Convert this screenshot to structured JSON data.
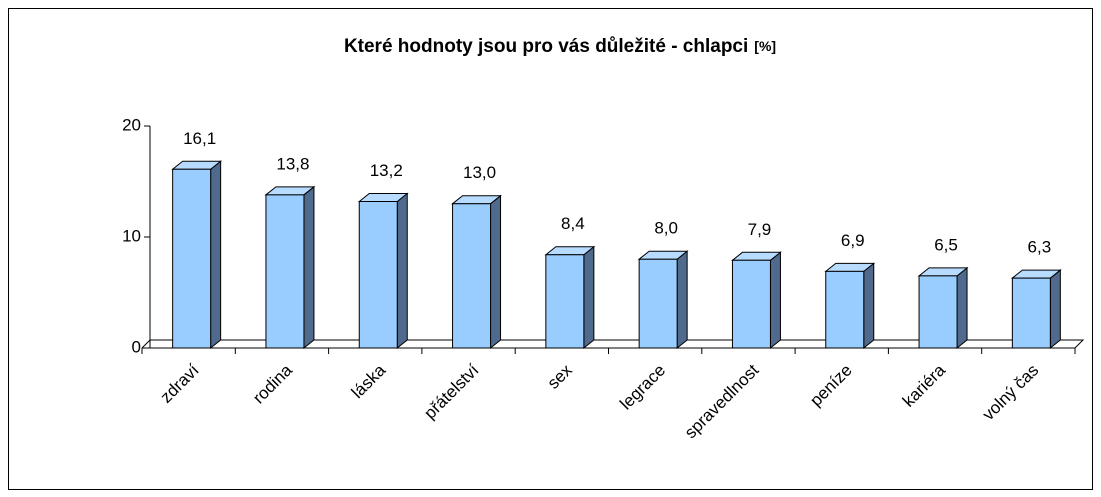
{
  "chart_data": {
    "type": "bar3d",
    "title": "Které hodnoty jsou pro vás důležité - chlapci",
    "title_unit": "[%]",
    "categories": [
      "zdraví",
      "rodina",
      "láska",
      "přátelství",
      "sex",
      "legrace",
      "spravedlnost",
      "peníze",
      "kariéra",
      "volný čas"
    ],
    "values": [
      16.1,
      13.8,
      13.2,
      13.0,
      8.4,
      8.0,
      7.9,
      6.9,
      6.5,
      6.3
    ],
    "value_labels": [
      "16,1",
      "13,8",
      "13,2",
      "13,0",
      "8,4",
      "8,0",
      "7,9",
      "6,9",
      "6,5",
      "6,3"
    ],
    "color": "#99ccff",
    "ylim": [
      0,
      20
    ],
    "yticks": [
      0,
      10,
      20
    ]
  }
}
